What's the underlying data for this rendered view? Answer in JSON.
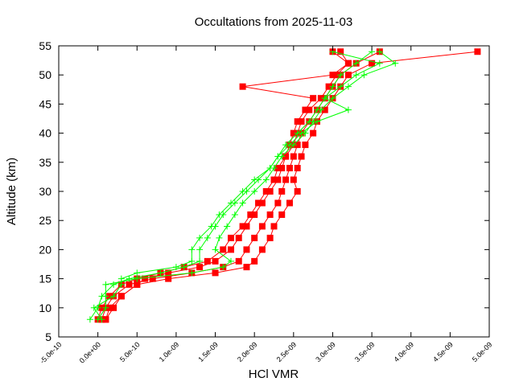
{
  "chart_data": {
    "type": "line",
    "title": "Occultations from 2025-11-03",
    "xlabel": "HCl VMR",
    "ylabel": "Altitude (km)",
    "xlim": [
      -5e-10,
      5e-09
    ],
    "ylim": [
      5,
      55
    ],
    "xticks": [
      "-5.0e-10",
      "0.0e+00",
      "5.0e-10",
      "1.0e-09",
      "1.5e-09",
      "2.0e-09",
      "2.5e-09",
      "3.0e-09",
      "3.5e-09",
      "4.0e-09",
      "4.5e-09",
      "5.0e-09"
    ],
    "xtick_values": [
      -5e-10,
      0,
      5e-10,
      1e-09,
      1.5e-09,
      2e-09,
      2.5e-09,
      3e-09,
      3.5e-09,
      4e-09,
      4.5e-09,
      5e-09
    ],
    "yticks": [
      "5",
      "10",
      "15",
      "20",
      "25",
      "30",
      "35",
      "40",
      "45",
      "50",
      "55"
    ],
    "ytick_values": [
      5,
      10,
      15,
      20,
      25,
      30,
      35,
      40,
      45,
      50,
      55
    ],
    "grid": false,
    "altitudes": [
      8,
      10,
      12,
      14,
      15,
      16,
      17,
      18,
      20,
      22,
      24,
      26,
      28,
      30,
      32,
      34,
      36,
      38,
      40,
      42,
      44,
      46,
      48,
      50,
      52,
      54
    ],
    "series": [
      {
        "color": "#ff0000",
        "marker": "square",
        "values": [
          5e-11,
          1e-10,
          2e-10,
          4e-10,
          7e-10,
          1.2e-09,
          1.6e-09,
          1.8e-09,
          1.9e-09,
          2e-09,
          2.1e-09,
          2.2e-09,
          2.3e-09,
          2.35e-09,
          2.4e-09,
          2.45e-09,
          2.5e-09,
          2.55e-09,
          2.6e-09,
          2.7e-09,
          2.8e-09,
          2.9e-09,
          3e-09,
          3.1e-09,
          3.3e-09,
          3.6e-09
        ]
      },
      {
        "color": "#ff0000",
        "marker": "square",
        "values": [
          1e-10,
          1.5e-10,
          3e-10,
          5e-10,
          9e-10,
          1.5e-09,
          1.9e-09,
          2e-09,
          2.1e-09,
          2.2e-09,
          2.25e-09,
          2.35e-09,
          2.45e-09,
          2.55e-09,
          2.5e-09,
          2.55e-09,
          2.6e-09,
          2.65e-09,
          2.75e-09,
          2.8e-09,
          2.9e-09,
          3e-09,
          3.1e-09,
          3.2e-09,
          3.5e-09,
          4.85e-09
        ]
      },
      {
        "color": "#ff0000",
        "marker": "square",
        "values": [
          1e-10,
          2e-10,
          3e-10,
          5e-10,
          6e-10,
          9e-10,
          1.3e-09,
          1.5e-09,
          1.7e-09,
          1.8e-09,
          1.9e-09,
          2e-09,
          2.1e-09,
          2.2e-09,
          2.3e-09,
          2.35e-09,
          2.4e-09,
          2.5e-09,
          2.55e-09,
          2.6e-09,
          2.7e-09,
          2.85e-09,
          2.95e-09,
          3.05e-09,
          3.2e-09,
          3e-09
        ]
      },
      {
        "color": "#ff0000",
        "marker": "square",
        "values": [
          0.0,
          5e-11,
          1.5e-10,
          3e-10,
          5e-10,
          8e-10,
          1.1e-09,
          1.4e-09,
          1.6e-09,
          1.7e-09,
          1.85e-09,
          1.95e-09,
          2.05e-09,
          2.15e-09,
          2.25e-09,
          2.3e-09,
          2.4e-09,
          2.45e-09,
          2.5e-09,
          2.55e-09,
          2.65e-09,
          2.75e-09,
          1.85e-09,
          3e-09,
          3.2e-09,
          3.1e-09
        ]
      },
      {
        "color": "#00ff00",
        "marker": "plus",
        "values": [
          -1e-10,
          0.0,
          5e-11,
          2e-10,
          4e-10,
          8e-10,
          1.1e-09,
          1.3e-09,
          1.3e-09,
          1.4e-09,
          1.5e-09,
          1.6e-09,
          1.75e-09,
          1.9e-09,
          2.05e-09,
          2.2e-09,
          2.3e-09,
          2.4e-09,
          2.55e-09,
          2.7e-09,
          2.8e-09,
          2.9e-09,
          3e-09,
          3.1e-09,
          3.3e-09,
          3.5e-09
        ]
      },
      {
        "color": "#00ff00",
        "marker": "plus",
        "values": [
          0.0,
          1e-10,
          1e-10,
          1e-10,
          5e-10,
          1.2e-09,
          1.6e-09,
          1.7e-09,
          1.5e-09,
          1.55e-09,
          1.65e-09,
          1.75e-09,
          1.85e-09,
          2e-09,
          2.15e-09,
          2.25e-09,
          2.35e-09,
          2.5e-09,
          2.65e-09,
          2.75e-09,
          2.85e-09,
          3e-09,
          3.2e-09,
          3.4e-09,
          3.8e-09,
          3.6e-09
        ]
      },
      {
        "color": "#00ff00",
        "marker": "plus",
        "values": [
          5e-11,
          -5e-11,
          2e-10,
          3e-10,
          3e-10,
          5e-10,
          1e-09,
          1.2e-09,
          1.2e-09,
          1.3e-09,
          1.45e-09,
          1.55e-09,
          1.7e-09,
          1.85e-09,
          2e-09,
          2.2e-09,
          2.3e-09,
          2.45e-09,
          2.6e-09,
          2.8e-09,
          3.2e-09,
          2.9e-09,
          3.1e-09,
          3.3e-09,
          3.6e-09,
          3e-09
        ]
      }
    ]
  }
}
